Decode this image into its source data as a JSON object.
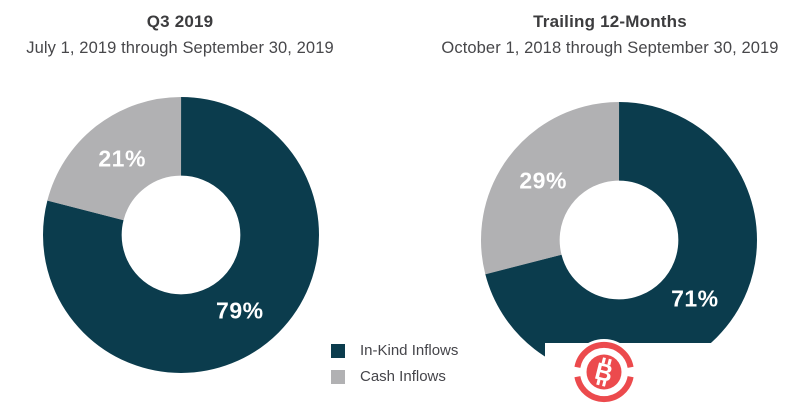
{
  "chart_data": [
    {
      "type": "pie",
      "donut": true,
      "title": "Q3 2019",
      "subtitle": "July 1, 2019 through September 30, 2019",
      "categories": [
        "In-Kind Inflows",
        "Cash Inflows"
      ],
      "values": [
        79,
        21
      ],
      "labels": [
        "79%",
        "21%"
      ],
      "colors": [
        "#0b3c4d",
        "#b1b1b3"
      ],
      "start_angle": "top",
      "direction": "clockwise",
      "inner_radius_ratio": 0.43,
      "legend_position": "bottom-center"
    },
    {
      "type": "pie",
      "donut": true,
      "title": "Trailing 12-Months",
      "subtitle": "October 1, 2018 through September 30, 2019",
      "categories": [
        "In-Kind Inflows",
        "Cash Inflows"
      ],
      "values": [
        71,
        29
      ],
      "labels": [
        "71%",
        "29%"
      ],
      "colors": [
        "#0b3c4d",
        "#b1b1b3"
      ],
      "start_angle": "top",
      "direction": "clockwise",
      "inner_radius_ratio": 0.43,
      "legend_position": "bottom-center"
    }
  ],
  "legend": {
    "items": [
      {
        "label": "In-Kind Inflows",
        "color": "#0b3c4d"
      },
      {
        "label": "Cash Inflows",
        "color": "#b1b1b3"
      }
    ]
  },
  "watermark": {
    "icon": "bitcoin-icon",
    "symbol": "B",
    "color": "#ec4a4d"
  },
  "style": {
    "background": "#ffffff",
    "title_color": "#3c3c3e",
    "subtitle_color": "#47474a",
    "slice_label_color": "#ffffff"
  }
}
